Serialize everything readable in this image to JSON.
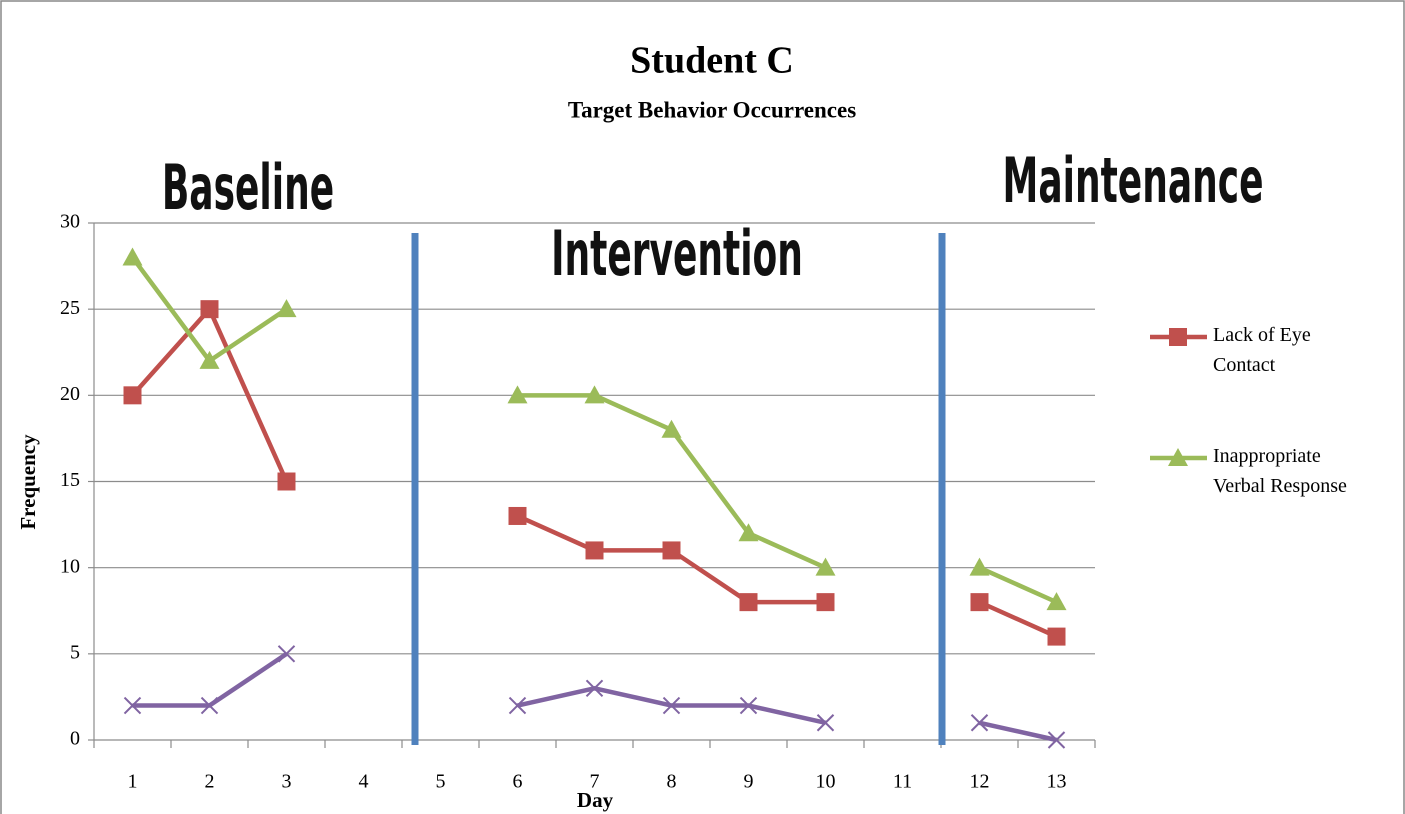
{
  "chart_data": {
    "type": "line",
    "title": "Student C",
    "subtitle": "Target Behavior Occurrences",
    "annotations": [
      "Baseline",
      "Intervention",
      "Maintenance"
    ],
    "xlabel": "Day",
    "ylabel": "Frequency",
    "categories": [
      "1",
      "2",
      "3",
      "4",
      "5",
      "6",
      "7",
      "8",
      "9",
      "10",
      "11",
      "12",
      "13"
    ],
    "series": [
      {
        "name": "Lack of Eye Contact",
        "color": "#c0504d",
        "marker": "square",
        "values": [
          20,
          25,
          15,
          null,
          null,
          13,
          11,
          11,
          8,
          8,
          null,
          8,
          6
        ]
      },
      {
        "name": "Inappropriate Verbal Response",
        "color": "#9bbb59",
        "marker": "triangle",
        "values": [
          28,
          22,
          25,
          null,
          null,
          20,
          20,
          18,
          12,
          10,
          null,
          10,
          8
        ]
      },
      {
        "color": "#8064a2",
        "marker": "x",
        "values": [
          2,
          2,
          5,
          null,
          null,
          2,
          3,
          2,
          2,
          1,
          null,
          1,
          0
        ]
      }
    ],
    "ylim": [
      0,
      30
    ],
    "yticks": [
      0,
      5,
      10,
      15,
      20,
      25,
      30
    ],
    "grid": true,
    "legend": "right"
  }
}
